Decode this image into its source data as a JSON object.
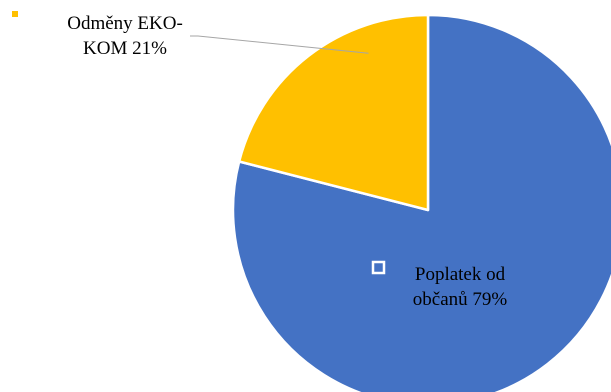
{
  "chart_data": {
    "type": "pie",
    "title": "",
    "slices": [
      {
        "name": "Poplatek od občanů",
        "value": 79,
        "label_lines": [
          "Poplatek od",
          "občanů 79%"
        ],
        "color": "#4472C4"
      },
      {
        "name": "Odměny EKO-KOM",
        "value": 21,
        "label_lines": [
          "Odměny EKO-",
          "KOM 21%"
        ],
        "color": "#FFC000"
      }
    ],
    "start_angle": "12 o'clock",
    "direction": "clockwise",
    "legend_markers": "inline with slice labels",
    "leader_line_color": "#A6A6A6"
  }
}
